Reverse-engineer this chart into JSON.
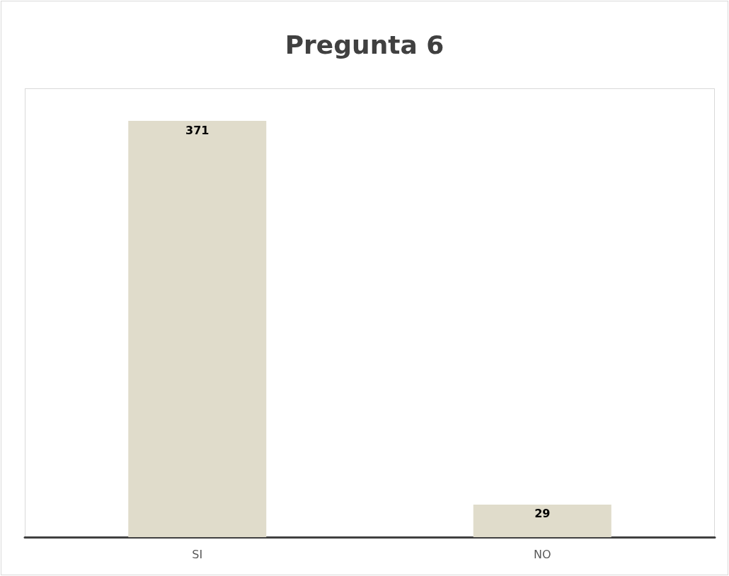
{
  "chart_data": {
    "type": "bar",
    "title": "Pregunta 6",
    "categories": [
      "SI",
      "NO"
    ],
    "values": [
      371,
      29
    ],
    "color": "#e0dccb",
    "data_labels": true
  }
}
